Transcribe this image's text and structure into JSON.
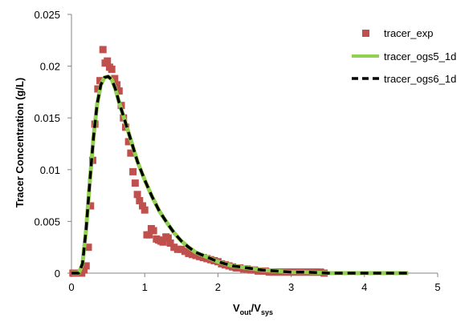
{
  "chart_data": {
    "type": "scatter",
    "xlabel": "Vout/Vsys",
    "xlabel_main": "V",
    "xlabel_sub1": "out",
    "xlabel_slash": "/V",
    "xlabel_sub2": "sys",
    "ylabel": "Tracer Concentration (g/L)",
    "xlim": [
      0,
      5
    ],
    "ylim": [
      0,
      0.025
    ],
    "x_ticks": [
      "0",
      "1",
      "2",
      "3",
      "4",
      "5"
    ],
    "y_ticks": [
      "0",
      "0.005",
      "0.01",
      "0.015",
      "0.02",
      "0.025"
    ],
    "grid": false,
    "legend_position": "top-right",
    "series": [
      {
        "name": "tracer_exp",
        "kind": "markers",
        "color": "#c0504d",
        "x": [
          0.02,
          0.05,
          0.08,
          0.11,
          0.14,
          0.17,
          0.2,
          0.23,
          0.26,
          0.29,
          0.32,
          0.36,
          0.39,
          0.43,
          0.46,
          0.49,
          0.52,
          0.55,
          0.59,
          0.62,
          0.65,
          0.68,
          0.71,
          0.74,
          0.78,
          0.81,
          0.84,
          0.87,
          0.9,
          0.93,
          0.97,
          1.0,
          1.03,
          1.06,
          1.09,
          1.12,
          1.16,
          1.19,
          1.22,
          1.25,
          1.29,
          1.32,
          1.35,
          1.4,
          1.45,
          1.5,
          1.55,
          1.6,
          1.65,
          1.7,
          1.75,
          1.8,
          1.85,
          1.9,
          1.95,
          2.0,
          2.05,
          2.1,
          2.15,
          2.2,
          2.25,
          2.3,
          2.35,
          2.4,
          2.45,
          2.5,
          2.55,
          2.6,
          2.65,
          2.7,
          2.75,
          2.8,
          2.85,
          2.9,
          2.95,
          3.0,
          3.05,
          3.1,
          3.15,
          3.2,
          3.25,
          3.3,
          3.35,
          3.4,
          3.45
        ],
        "y": [
          0.0,
          0.0,
          0.0,
          0.0,
          0.0,
          0.0003,
          0.0007,
          0.0025,
          0.0065,
          0.0109,
          0.0144,
          0.0178,
          0.0186,
          0.0216,
          0.0203,
          0.0205,
          0.0199,
          0.0197,
          0.0188,
          0.0182,
          0.0176,
          0.0162,
          0.015,
          0.0141,
          0.0127,
          0.0116,
          0.0098,
          0.0087,
          0.0076,
          0.007,
          0.0065,
          0.0061,
          0.0037,
          0.0037,
          0.0043,
          0.0041,
          0.0033,
          0.0032,
          0.0031,
          0.003,
          0.0035,
          0.0034,
          0.0029,
          0.0025,
          0.0023,
          0.0023,
          0.0021,
          0.0019,
          0.0018,
          0.0017,
          0.0016,
          0.0015,
          0.0014,
          0.0013,
          0.0012,
          0.0011,
          0.0009,
          0.0008,
          0.0007,
          0.0006,
          0.0005,
          0.0005,
          0.0004,
          0.0004,
          0.0003,
          0.0003,
          0.0002,
          0.0002,
          0.0002,
          0.0001,
          0.0001,
          0.0001,
          0.0001,
          0.0001,
          0.0001,
          0.0001,
          0.0001,
          0.0001,
          0.0001,
          0.0001,
          0.0001,
          0.0001,
          0.0001,
          0.0001,
          0.0
        ]
      },
      {
        "name": "tracer_ogs5_1d",
        "kind": "solid",
        "color": "#92d050",
        "x": [
          0.0,
          0.1,
          0.15,
          0.2,
          0.25,
          0.3,
          0.35,
          0.4,
          0.45,
          0.5,
          0.55,
          0.6,
          0.65,
          0.7,
          0.8,
          0.9,
          1.0,
          1.1,
          1.2,
          1.3,
          1.4,
          1.5,
          1.6,
          1.7,
          1.8,
          1.9,
          2.0,
          2.1,
          2.2,
          2.3,
          2.4,
          2.5,
          2.6,
          2.8,
          3.0,
          3.2,
          3.5,
          4.0,
          4.5,
          4.6
        ],
        "y": [
          0.0,
          0.0,
          0.0009,
          0.0042,
          0.0088,
          0.0131,
          0.0163,
          0.0182,
          0.0189,
          0.019,
          0.0187,
          0.0178,
          0.0165,
          0.0154,
          0.0131,
          0.0108,
          0.009,
          0.0074,
          0.006,
          0.0049,
          0.0039,
          0.0031,
          0.0025,
          0.002,
          0.0017,
          0.0014,
          0.0011,
          0.0009,
          0.0007,
          0.0006,
          0.0005,
          0.0004,
          0.0003,
          0.0002,
          0.0001,
          0.0001,
          0.0,
          0.0,
          0.0,
          0.0
        ]
      },
      {
        "name": "tracer_ogs6_1d",
        "kind": "dashed",
        "color": "#000000",
        "x": [
          0.0,
          0.1,
          0.15,
          0.2,
          0.25,
          0.3,
          0.35,
          0.4,
          0.45,
          0.5,
          0.55,
          0.6,
          0.65,
          0.7,
          0.8,
          0.9,
          1.0,
          1.1,
          1.2,
          1.3,
          1.4,
          1.5,
          1.6,
          1.7,
          1.8,
          1.9,
          2.0,
          2.1,
          2.2,
          2.3,
          2.4,
          2.5,
          2.6,
          2.8,
          3.0,
          3.2,
          3.5,
          4.0,
          4.5,
          4.6
        ],
        "y": [
          0.0,
          0.0,
          0.0009,
          0.0042,
          0.0088,
          0.0131,
          0.0163,
          0.0182,
          0.0189,
          0.019,
          0.0187,
          0.0178,
          0.0165,
          0.0154,
          0.0131,
          0.0108,
          0.009,
          0.0074,
          0.006,
          0.0049,
          0.0039,
          0.0031,
          0.0025,
          0.002,
          0.0017,
          0.0014,
          0.0011,
          0.0009,
          0.0007,
          0.0006,
          0.0005,
          0.0004,
          0.0003,
          0.0002,
          0.0001,
          0.0001,
          0.0,
          0.0,
          0.0,
          0.0
        ]
      }
    ]
  }
}
